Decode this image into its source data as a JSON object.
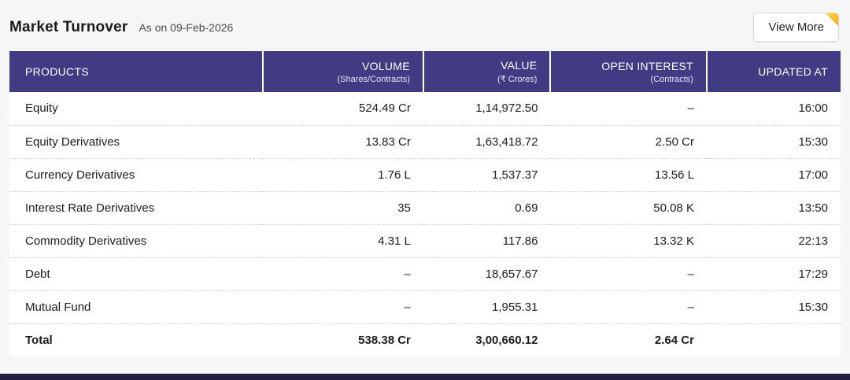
{
  "header": {
    "title": "Market Turnover",
    "as_on": "As on 09-Feb-2026",
    "view_more_label": "View More"
  },
  "table": {
    "columns": [
      {
        "label": "PRODUCTS",
        "sub": ""
      },
      {
        "label": "VOLUME",
        "sub": "(Shares/Contracts)"
      },
      {
        "label": "VALUE",
        "sub": "(₹ Crores)"
      },
      {
        "label": "OPEN INTEREST",
        "sub": "(Contracts)"
      },
      {
        "label": "UPDATED AT",
        "sub": ""
      }
    ],
    "rows": [
      {
        "product": "Equity",
        "volume": "524.49 Cr",
        "value": "1,14,972.50",
        "open_interest": "–",
        "updated_at": "16:00"
      },
      {
        "product": "Equity Derivatives",
        "volume": "13.83 Cr",
        "value": "1,63,418.72",
        "open_interest": "2.50 Cr",
        "updated_at": "15:30"
      },
      {
        "product": "Currency Derivatives",
        "volume": "1.76 L",
        "value": "1,537.37",
        "open_interest": "13.56 L",
        "updated_at": "17:00"
      },
      {
        "product": "Interest Rate Derivatives",
        "volume": "35",
        "value": "0.69",
        "open_interest": "50.08 K",
        "updated_at": "13:50"
      },
      {
        "product": "Commodity Derivatives",
        "volume": "4.31 L",
        "value": "117.86",
        "open_interest": "13.32 K",
        "updated_at": "22:13"
      },
      {
        "product": "Debt",
        "volume": "–",
        "value": "18,657.67",
        "open_interest": "–",
        "updated_at": "17:29"
      },
      {
        "product": "Mutual Fund",
        "volume": "–",
        "value": "1,955.31",
        "open_interest": "–",
        "updated_at": "15:30"
      }
    ],
    "total": {
      "product": "Total",
      "volume": "538.38 Cr",
      "value": "3,00,660.12",
      "open_interest": "2.64 Cr",
      "updated_at": ""
    }
  },
  "colors": {
    "table_header_bg": "#413b84",
    "fold_accent": "#f9a825",
    "footer_bar": "#1f1c3d",
    "page_background": "#f6f6f6"
  }
}
